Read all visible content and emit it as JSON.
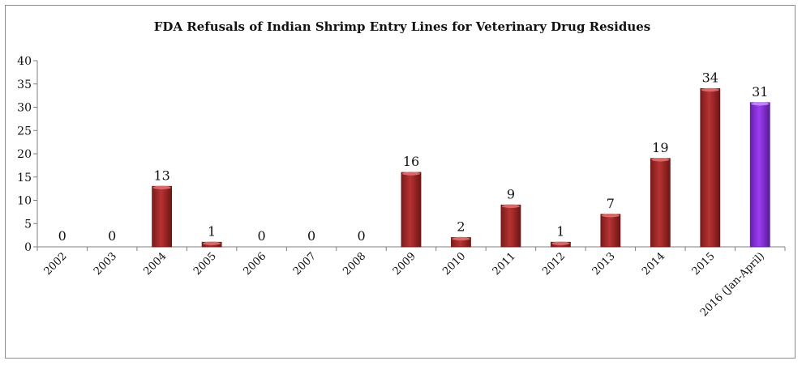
{
  "chart_data": {
    "type": "bar",
    "title": "FDA Refusals of Indian Shrimp Entry Lines for Veterinary Drug Residues",
    "xlabel": "",
    "ylabel": "",
    "categories": [
      "2002",
      "2003",
      "2004",
      "2005",
      "2006",
      "2007",
      "2008",
      "2009",
      "2010",
      "2011",
      "2012",
      "2013",
      "2014",
      "2015",
      "2016 (Jan-April)"
    ],
    "values": [
      0,
      0,
      13,
      1,
      0,
      0,
      0,
      16,
      2,
      9,
      1,
      7,
      19,
      34,
      31
    ],
    "data_labels": [
      "0",
      "0",
      "13",
      "1",
      "0",
      "0",
      "0",
      "16",
      "2",
      "9",
      "1",
      "7",
      "19",
      "34",
      "31"
    ],
    "ylim": [
      0,
      40
    ],
    "yticks": [
      0,
      5,
      10,
      15,
      20,
      25,
      30,
      35,
      40
    ],
    "grid": false,
    "legend": "none",
    "colors": {
      "bar": "#a52a2a",
      "bar_dark": "#6e1515",
      "bar_highlight": "#8a2be2",
      "bar_highlight_dark": "#5a1a9a",
      "axis": "#7f7f7f"
    },
    "highlight_index": 14
  }
}
